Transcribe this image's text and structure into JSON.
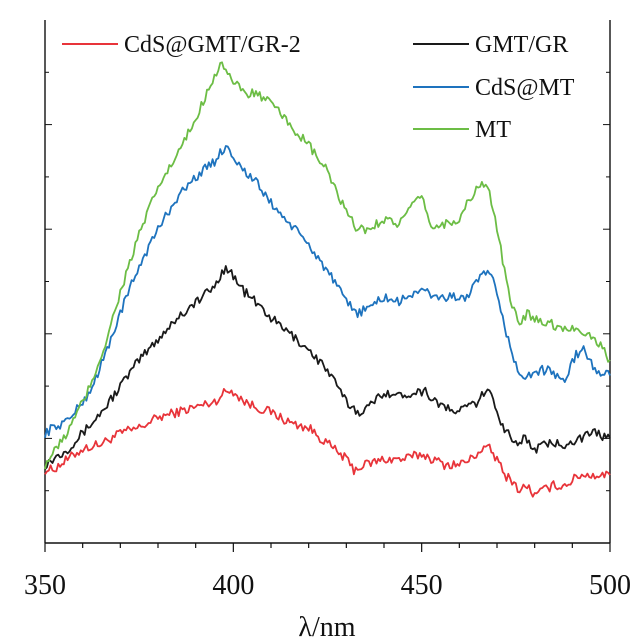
{
  "chart_data": {
    "type": "line",
    "xlabel": "λ/nm",
    "ylabel": "",
    "xlim": [
      350,
      500
    ],
    "ylim": [
      0,
      1
    ],
    "x_ticks": [
      350,
      400,
      450,
      500
    ],
    "grid": false,
    "legend_placement": "top",
    "series": [
      {
        "name": "CdS@GMT/GR-2",
        "color": "#e8343a",
        "x": [
          350,
          352,
          356,
          360,
          365,
          370,
          375,
          380,
          385,
          390,
          395,
          398,
          400,
          403,
          406,
          410,
          415,
          420,
          425,
          430,
          432,
          435,
          440,
          445,
          450,
          453,
          456,
          460,
          463,
          466,
          468,
          470,
          472,
          474,
          476,
          478,
          480,
          482,
          485,
          488,
          492,
          496,
          500
        ],
        "y": [
          0.14,
          0.14,
          0.16,
          0.18,
          0.19,
          0.21,
          0.22,
          0.24,
          0.25,
          0.26,
          0.27,
          0.29,
          0.29,
          0.27,
          0.26,
          0.25,
          0.23,
          0.22,
          0.19,
          0.16,
          0.14,
          0.15,
          0.16,
          0.16,
          0.17,
          0.16,
          0.15,
          0.15,
          0.16,
          0.18,
          0.18,
          0.16,
          0.13,
          0.12,
          0.1,
          0.11,
          0.09,
          0.1,
          0.11,
          0.11,
          0.13,
          0.13,
          0.13
        ]
      },
      {
        "name": "GMT/GR",
        "color": "#1a1a1a",
        "x": [
          350,
          352,
          356,
          360,
          365,
          370,
          375,
          380,
          385,
          390,
          395,
          398,
          400,
          403,
          406,
          410,
          415,
          420,
          425,
          430,
          433,
          436,
          440,
          444,
          448,
          451,
          454,
          458,
          462,
          465,
          467,
          469,
          471,
          473,
          475,
          477,
          480,
          484,
          488,
          492,
          496,
          500
        ],
        "y": [
          0.15,
          0.16,
          0.18,
          0.21,
          0.25,
          0.3,
          0.35,
          0.39,
          0.43,
          0.46,
          0.49,
          0.53,
          0.51,
          0.48,
          0.46,
          0.43,
          0.4,
          0.37,
          0.33,
          0.27,
          0.25,
          0.26,
          0.29,
          0.28,
          0.29,
          0.29,
          0.27,
          0.25,
          0.26,
          0.27,
          0.29,
          0.28,
          0.23,
          0.21,
          0.19,
          0.2,
          0.18,
          0.19,
          0.19,
          0.2,
          0.21,
          0.2
        ]
      },
      {
        "name": "CdS@MT",
        "color": "#1e73be",
        "x": [
          350,
          352,
          355,
          358,
          362,
          366,
          370,
          375,
          380,
          385,
          390,
          395,
          398,
          400,
          403,
          406,
          410,
          415,
          420,
          425,
          430,
          433,
          436,
          440,
          444,
          448,
          451,
          454,
          458,
          462,
          465,
          467,
          469,
          471,
          473,
          475,
          477,
          480,
          484,
          488,
          491,
          493,
          496,
          500
        ],
        "y": [
          0.21,
          0.22,
          0.23,
          0.25,
          0.29,
          0.36,
          0.44,
          0.53,
          0.6,
          0.66,
          0.7,
          0.73,
          0.76,
          0.74,
          0.71,
          0.69,
          0.65,
          0.61,
          0.57,
          0.52,
          0.46,
          0.44,
          0.45,
          0.47,
          0.46,
          0.48,
          0.48,
          0.47,
          0.47,
          0.47,
          0.5,
          0.52,
          0.5,
          0.44,
          0.39,
          0.34,
          0.31,
          0.33,
          0.33,
          0.31,
          0.36,
          0.37,
          0.33,
          0.32
        ]
      },
      {
        "name": "MT",
        "color": "#6cbd45",
        "x": [
          350,
          352,
          355,
          358,
          362,
          366,
          370,
          375,
          380,
          385,
          390,
          394,
          397,
          400,
          403,
          406,
          410,
          415,
          420,
          425,
          430,
          433,
          436,
          440,
          444,
          447,
          450,
          453,
          456,
          460,
          463,
          466,
          468,
          470,
          472,
          474,
          476,
          478,
          480,
          484,
          488,
          492,
          496,
          500
        ],
        "y": [
          0.15,
          0.17,
          0.2,
          0.24,
          0.3,
          0.38,
          0.48,
          0.59,
          0.68,
          0.74,
          0.81,
          0.88,
          0.92,
          0.88,
          0.86,
          0.86,
          0.84,
          0.8,
          0.76,
          0.71,
          0.63,
          0.6,
          0.6,
          0.62,
          0.61,
          0.64,
          0.66,
          0.6,
          0.61,
          0.62,
          0.66,
          0.69,
          0.67,
          0.6,
          0.52,
          0.45,
          0.42,
          0.44,
          0.43,
          0.42,
          0.41,
          0.41,
          0.39,
          0.35
        ]
      }
    ]
  }
}
